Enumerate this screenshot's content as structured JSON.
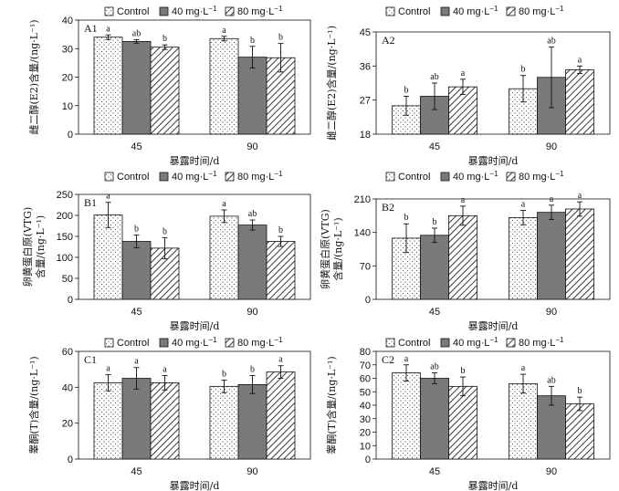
{
  "legend": {
    "series_labels": [
      "Control",
      "40 mg·L",
      "80 mg·L"
    ],
    "unit_superscript": "−1"
  },
  "colors": {
    "control_fill": "#ffffff",
    "mid_fill": "#7a7a7a",
    "high_hatch": "#222222",
    "axis": "#111111"
  },
  "chart_data": [
    {
      "id": "A1",
      "type": "bar",
      "title": "A1",
      "categories": [
        "45",
        "90"
      ],
      "xlabel": "暴露时间/d",
      "ylabel": "雌二醇(E2)含量/(ng·L⁻¹)",
      "ylim": [
        0,
        40
      ],
      "yticks": [
        0,
        10,
        20,
        30,
        40
      ],
      "series": [
        {
          "name": "Control",
          "values": [
            34.0,
            33.5
          ],
          "err": [
            0.8,
            0.8
          ],
          "sig": [
            "a",
            "a"
          ]
        },
        {
          "name": "40 mg·L⁻¹",
          "values": [
            32.5,
            27.0
          ],
          "err": [
            0.6,
            3.8
          ],
          "sig": [
            "ab",
            "b"
          ]
        },
        {
          "name": "80 mg·L⁻¹",
          "values": [
            30.5,
            26.8
          ],
          "err": [
            0.8,
            5.0
          ],
          "sig": [
            "b",
            "b"
          ]
        }
      ]
    },
    {
      "id": "A2",
      "type": "bar",
      "title": "A2",
      "categories": [
        "45",
        "90"
      ],
      "xlabel": "暴露时间/d",
      "ylabel": "雌二醇(E2)含量/(ng·L⁻¹)",
      "ylim": [
        18,
        45
      ],
      "yticks": [
        18,
        27,
        36,
        45
      ],
      "series": [
        {
          "name": "Control",
          "values": [
            25.5,
            30.0
          ],
          "err": [
            2.5,
            3.5
          ],
          "sig": [
            "b",
            "b"
          ]
        },
        {
          "name": "40 mg·L⁻¹",
          "values": [
            28.0,
            33.0
          ],
          "err": [
            3.5,
            8.0
          ],
          "sig": [
            "ab",
            "ab"
          ]
        },
        {
          "name": "80 mg·L⁻¹",
          "values": [
            30.5,
            35.0
          ],
          "err": [
            2.0,
            1.0
          ],
          "sig": [
            "a",
            "a"
          ]
        }
      ]
    },
    {
      "id": "B1",
      "type": "bar",
      "title": "B1",
      "categories": [
        "45",
        "90"
      ],
      "xlabel": "暴露时间/d",
      "ylabel": "卵黄蛋白原(VTG)|含量/(ng·L⁻¹)",
      "ylim": [
        0,
        250
      ],
      "yticks": [
        0,
        50,
        100,
        150,
        200,
        250
      ],
      "series": [
        {
          "name": "Control",
          "values": [
            201,
            198
          ],
          "err": [
            30,
            15
          ],
          "sig": [
            "a",
            "a"
          ]
        },
        {
          "name": "40 mg·L⁻¹",
          "values": [
            138,
            177
          ],
          "err": [
            15,
            12
          ],
          "sig": [
            "b",
            "ab"
          ]
        },
        {
          "name": "80 mg·L⁻¹",
          "values": [
            122,
            138
          ],
          "err": [
            25,
            12
          ],
          "sig": [
            "b",
            "b"
          ]
        }
      ]
    },
    {
      "id": "B2",
      "type": "bar",
      "title": "B2",
      "categories": [
        "45",
        "90"
      ],
      "xlabel": "暴露时间/d",
      "ylabel": "卵黄蛋白原(VTG)|含量/(ng·L⁻¹)",
      "ylim": [
        0,
        210
      ],
      "yticks": [
        0,
        70,
        140,
        210
      ],
      "series": [
        {
          "name": "Control",
          "values": [
            128,
            171
          ],
          "err": [
            30,
            15
          ],
          "sig": [
            "b",
            "a"
          ]
        },
        {
          "name": "40 mg·L⁻¹",
          "values": [
            134,
            182
          ],
          "err": [
            15,
            15
          ],
          "sig": [
            "b",
            "a"
          ]
        },
        {
          "name": "80 mg·L⁻¹",
          "values": [
            175,
            189
          ],
          "err": [
            20,
            15
          ],
          "sig": [
            "a",
            "a"
          ]
        }
      ]
    },
    {
      "id": "C1",
      "type": "bar",
      "title": "C1",
      "categories": [
        "45",
        "90"
      ],
      "xlabel": "暴露时间/d",
      "ylabel": "睾酮(T)含量/(ng·L⁻¹)",
      "ylim": [
        0,
        60
      ],
      "yticks": [
        0,
        20,
        40,
        60
      ],
      "series": [
        {
          "name": "Control",
          "values": [
            42.5,
            40.5
          ],
          "err": [
            4.5,
            3.5
          ],
          "sig": [
            "a",
            "b"
          ]
        },
        {
          "name": "40 mg·L⁻¹",
          "values": [
            45.0,
            41.5
          ],
          "err": [
            6.0,
            5.0
          ],
          "sig": [
            "a",
            "b"
          ]
        },
        {
          "name": "80 mg·L⁻¹",
          "values": [
            42.5,
            48.5
          ],
          "err": [
            4.0,
            3.5
          ],
          "sig": [
            "a",
            "a"
          ]
        }
      ]
    },
    {
      "id": "C2",
      "type": "bar",
      "title": "C2",
      "categories": [
        "45",
        "90"
      ],
      "xlabel": "暴露时间/d",
      "ylabel": "睾酮(T)含量/(ng·L⁻¹)",
      "ylim": [
        0,
        80
      ],
      "yticks": [
        0,
        10,
        20,
        30,
        40,
        50,
        60,
        70,
        80
      ],
      "series": [
        {
          "name": "Control",
          "values": [
            64.0,
            56.0
          ],
          "err": [
            6.0,
            7.0
          ],
          "sig": [
            "a",
            "a"
          ]
        },
        {
          "name": "40 mg·L⁻¹",
          "values": [
            60.0,
            47.0
          ],
          "err": [
            4.0,
            7.0
          ],
          "sig": [
            "ab",
            "ab"
          ]
        },
        {
          "name": "80 mg·L⁻¹",
          "values": [
            54.0,
            41.0
          ],
          "err": [
            7.0,
            5.0
          ],
          "sig": [
            "b",
            "b"
          ]
        }
      ]
    }
  ]
}
